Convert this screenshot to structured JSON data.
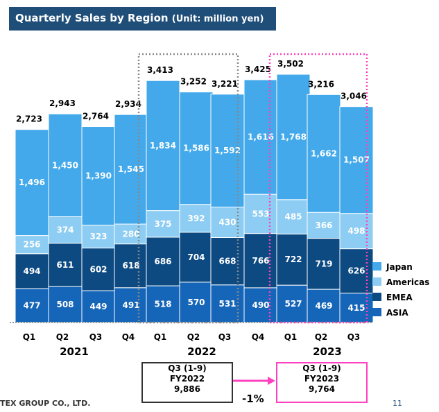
{
  "title": "Quarterly Sales by Region",
  "unit": "(Unit: million yen)",
  "chart_data": {
    "type": "bar",
    "stacked": true,
    "categories": [
      "Q1",
      "Q2",
      "Q3",
      "Q4",
      "Q1",
      "Q2",
      "Q3",
      "Q4",
      "Q1",
      "Q2",
      "Q3"
    ],
    "years": [
      "2021",
      "2022",
      "2023"
    ],
    "series": [
      {
        "name": "ASIA",
        "color": "#1565b8",
        "values": [
          477,
          508,
          449,
          491,
          518,
          570,
          531,
          490,
          527,
          469,
          415
        ]
      },
      {
        "name": "EMEA",
        "color": "#0d4a82",
        "values": [
          494,
          611,
          602,
          618,
          686,
          704,
          668,
          766,
          722,
          719,
          626
        ]
      },
      {
        "name": "Americas",
        "color": "#8dcdf3",
        "values": [
          256,
          374,
          323,
          280,
          375,
          392,
          430,
          553,
          485,
          366,
          498
        ]
      },
      {
        "name": "Japan",
        "color": "#43a9ea",
        "values": [
          1496,
          1450,
          1390,
          1545,
          1834,
          1586,
          1592,
          1616,
          1768,
          1662,
          1507
        ]
      }
    ],
    "totals": [
      "2,723",
      "2,943",
      "2,764",
      "2,934",
      "3,413",
      "3,252",
      "3,221",
      "3,425",
      "3,502",
      "3,216",
      "3,046"
    ],
    "legend_order": [
      "Japan",
      "Americas",
      "EMEA",
      "ASIA"
    ],
    "legend_position": "right"
  },
  "comparison": {
    "fy2022": {
      "line1": "Q3 (1-9)",
      "line2": "FY2022",
      "line3": "9,886"
    },
    "fy2023": {
      "line1": "Q3 (1-9)",
      "line2": "FY2023",
      "line3": "9,764"
    },
    "change": "-1%"
  },
  "footer": "TEX GROUP CO., LTD.",
  "page_number": "11"
}
